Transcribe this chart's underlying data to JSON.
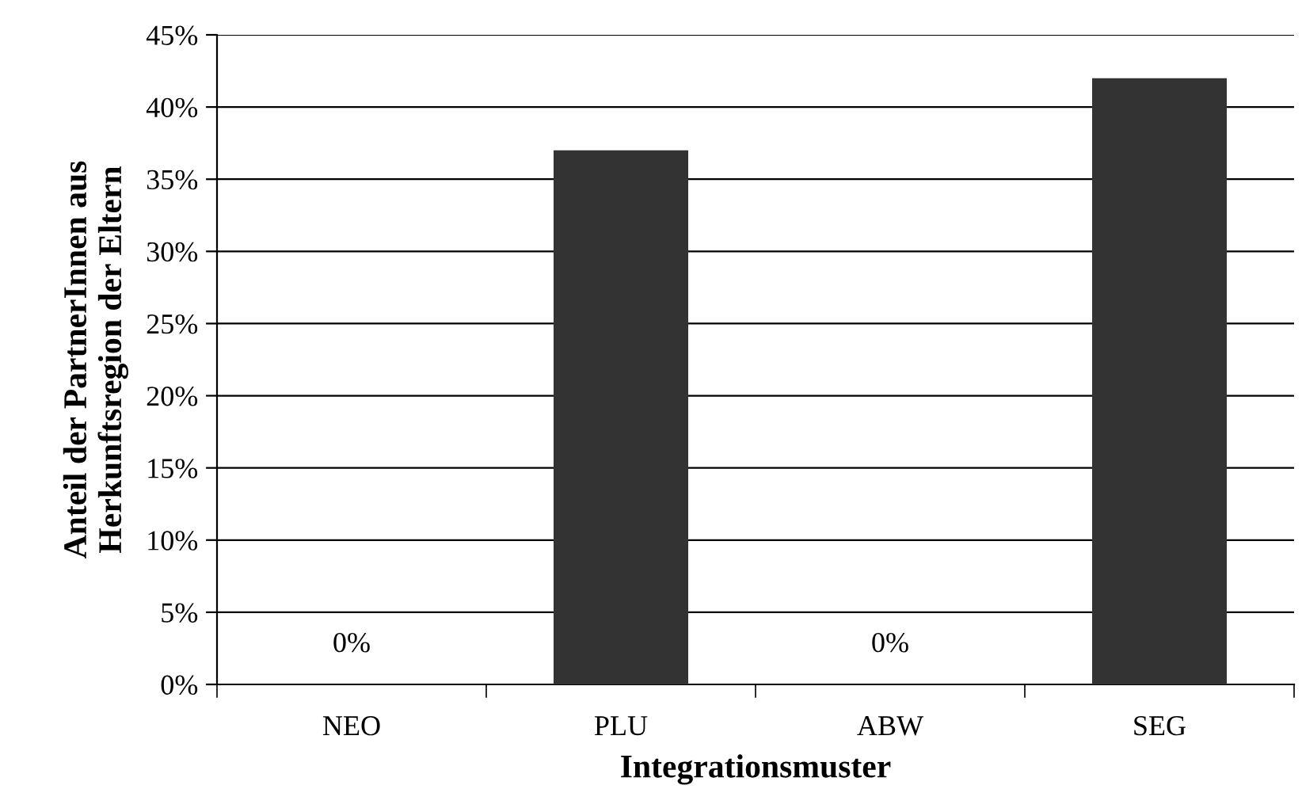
{
  "chart_data": {
    "type": "bar",
    "xlabel": "Integrationsmuster",
    "ylabel": "Anteil der PartnerInnen aus\nHerkunftsregion der Eltern",
    "categories": [
      "NEO",
      "PLU",
      "ABW",
      "SEG"
    ],
    "values": [
      0,
      37,
      0,
      42
    ],
    "color": "#333333",
    "value_labels": [
      "0%",
      null,
      "0%",
      null
    ],
    "ylim": [
      0,
      45
    ],
    "yticks": [
      {
        "value": 0,
        "label": "0%"
      },
      {
        "value": 5,
        "label": "5%"
      },
      {
        "value": 10,
        "label": "10%"
      },
      {
        "value": 15,
        "label": "15%"
      },
      {
        "value": 20,
        "label": "20%"
      },
      {
        "value": 25,
        "label": "25%"
      },
      {
        "value": 30,
        "label": "30%"
      },
      {
        "value": 35,
        "label": "35%"
      },
      {
        "value": 40,
        "label": "40%"
      },
      {
        "value": 45,
        "label": "45%"
      }
    ],
    "grid": "y",
    "legend": false
  }
}
